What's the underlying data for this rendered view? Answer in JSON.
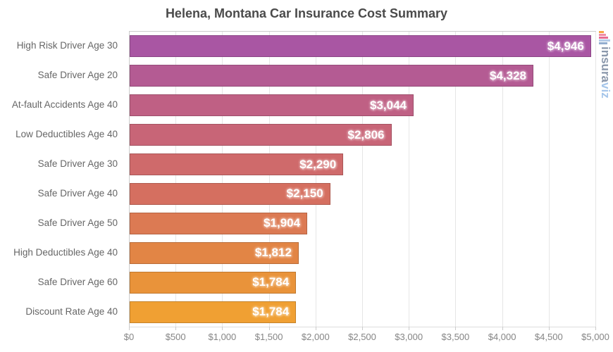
{
  "page": {
    "background": "#ffffff"
  },
  "chart_data": {
    "type": "bar",
    "orientation": "horizontal",
    "title": "Helena, Montana Car Insurance Cost Summary",
    "categories": [
      "High Risk Driver Age 30",
      "Safe Driver Age 20",
      "At-fault Accidents Age 40",
      "Low Deductibles Age 40",
      "Safe Driver Age 30",
      "Safe Driver Age 40",
      "Safe Driver Age 50",
      "High Deductibles Age 40",
      "Safe Driver Age 60",
      "Discount Rate Age 40"
    ],
    "values": [
      4946,
      4328,
      3044,
      2806,
      2290,
      2150,
      1904,
      1812,
      1784,
      1784
    ],
    "value_labels": [
      "$4,946",
      "$4,328",
      "$3,044",
      "$2,806",
      "$2,290",
      "$2,150",
      "$1,904",
      "$1,812",
      "$1,784",
      "$1,784"
    ],
    "bar_colors": [
      "#a956a3",
      "#b45b93",
      "#bf6084",
      "#c86577",
      "#cf6a6b",
      "#d56f60",
      "#dc7a53",
      "#e28545",
      "#e9933a",
      "#f0a033"
    ],
    "xlim": [
      0,
      5000
    ],
    "x_ticks": [
      {
        "value": 0,
        "label": "$0"
      },
      {
        "value": 500,
        "label": "$500"
      },
      {
        "value": 1000,
        "label": "$1,000"
      },
      {
        "value": 1500,
        "label": "$1,500"
      },
      {
        "value": 2000,
        "label": "$2,000"
      },
      {
        "value": 2500,
        "label": "$2,500"
      },
      {
        "value": 3000,
        "label": "$3,000"
      },
      {
        "value": 3500,
        "label": "$3,500"
      },
      {
        "value": 4000,
        "label": "$4,000"
      },
      {
        "value": 4500,
        "label": "$4,500"
      },
      {
        "value": 5000,
        "label": "$5,000"
      }
    ],
    "grid": true,
    "legend": "none",
    "colors": {
      "title": "#4a4a4a",
      "category_label": "#666666",
      "tick_label": "#858585",
      "gridline": "#e6e6e6",
      "axis_line": "#cbcbcb",
      "value_label": "#ffffff"
    }
  },
  "watermark": {
    "brand_prefix": "insura",
    "brand_suffix": "viz",
    "prefix_color": "#8a97ab",
    "suffix_color": "#a6c6ea",
    "icon_bar_colors": [
      "#f6a444",
      "#f08ba6",
      "#e76d94",
      "#b3cae6",
      "#93aed0"
    ],
    "icon_bar_heights": [
      7,
      10,
      13,
      16,
      12
    ]
  }
}
